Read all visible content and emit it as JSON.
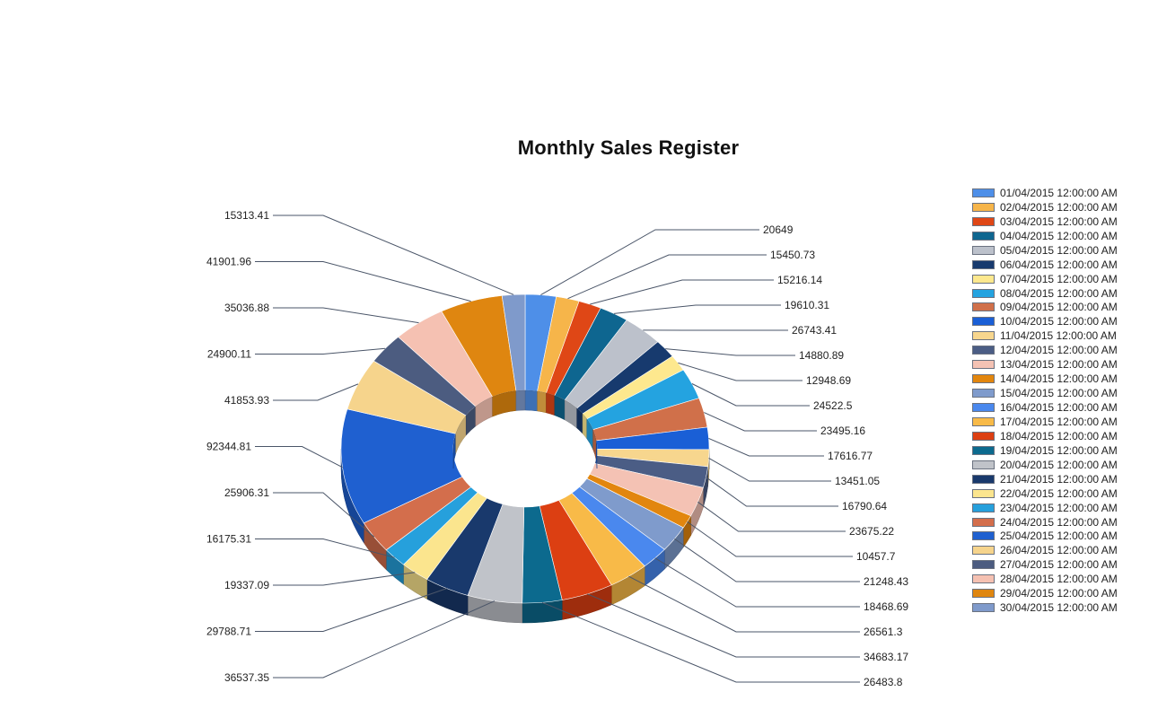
{
  "chart_data": {
    "type": "pie",
    "variant": "3d-doughnut",
    "title": "Monthly Sales Register",
    "legend_position": "right",
    "categories": [
      "01/04/2015 12:00:00 AM",
      "02/04/2015 12:00:00 AM",
      "03/04/2015 12:00:00 AM",
      "04/04/2015 12:00:00 AM",
      "05/04/2015 12:00:00 AM",
      "06/04/2015 12:00:00 AM",
      "07/04/2015 12:00:00 AM",
      "08/04/2015 12:00:00 AM",
      "09/04/2015 12:00:00 AM",
      "10/04/2015 12:00:00 AM",
      "11/04/2015 12:00:00 AM",
      "12/04/2015 12:00:00 AM",
      "13/04/2015 12:00:00 AM",
      "14/04/2015 12:00:00 AM",
      "15/04/2015 12:00:00 AM",
      "16/04/2015 12:00:00 AM",
      "17/04/2015 12:00:00 AM",
      "18/04/2015 12:00:00 AM",
      "19/04/2015 12:00:00 AM",
      "20/04/2015 12:00:00 AM",
      "21/04/2015 12:00:00 AM",
      "22/04/2015 12:00:00 AM",
      "23/04/2015 12:00:00 AM",
      "24/04/2015 12:00:00 AM",
      "25/04/2015 12:00:00 AM",
      "26/04/2015 12:00:00 AM",
      "27/04/2015 12:00:00 AM",
      "28/04/2015 12:00:00 AM",
      "29/04/2015 12:00:00 AM",
      "30/04/2015 12:00:00 AM"
    ],
    "slices": [
      {
        "value": 20649
      },
      {
        "value": 15450.73
      },
      {
        "value": 15216.14
      },
      {
        "value": 19610.31
      },
      {
        "value": 26743.41
      },
      {
        "value": 14880.89
      },
      {
        "value": 12948.69
      },
      {
        "value": 24522.5
      },
      {
        "value": 23495.16
      },
      {
        "value": 17616.77
      },
      {
        "value": 13451.05
      },
      {
        "value": 16790.64
      },
      {
        "value": 23675.22
      },
      {
        "value": 10457.7
      },
      {
        "value": 21248.43
      },
      {
        "value": 18468.69
      },
      {
        "value": 26561.3
      },
      {
        "value": 34683.17
      },
      {
        "value": 26483.8
      },
      {
        "value": 36537.35
      },
      {
        "value": 29788.71
      },
      {
        "value": 19337.09
      },
      {
        "value": 16175.31
      },
      {
        "value": 25906.31
      },
      {
        "value": 92344.81
      },
      {
        "value": 41853.93
      },
      {
        "value": 24900.11
      },
      {
        "value": 35036.88
      },
      {
        "value": 41901.96
      },
      {
        "value": 15313.41
      }
    ],
    "colors": [
      "#4e8fe8",
      "#f6b54a",
      "#df4716",
      "#0e6690",
      "#bcc1cb",
      "#173a6e",
      "#fde88e",
      "#24a3e0",
      "#d0704a",
      "#1a5fd6",
      "#f7d68e",
      "#4b5d85",
      "#f4c2b4",
      "#e2860e",
      "#7f9bcc",
      "#4a88ee",
      "#f8ba48",
      "#dc3f12",
      "#0c6a8e",
      "#c0c3c9",
      "#19396c",
      "#fbe58e",
      "#26a0dc",
      "#d36e4c",
      "#1f60d0",
      "#f6d48c",
      "#4c5c80",
      "#f5c1b2",
      "#df8610",
      "#7f9acb"
    ],
    "data_labels": [
      "20649",
      "15450.73",
      "15216.14",
      "19610.31",
      "26743.41",
      "14880.89",
      "12948.69",
      "24522.5",
      "23495.16",
      "17616.77",
      "13451.05",
      "16790.64",
      "23675.22",
      "10457.7",
      "21248.43",
      "18468.69",
      "26561.3",
      "34683.17",
      "26483.8",
      "36537.35",
      "29788.71",
      "19337.09",
      "16175.31",
      "25906.31",
      "92344.81",
      "41853.93",
      "24900.11",
      "35036.88",
      "41901.96",
      "15313.41"
    ]
  }
}
